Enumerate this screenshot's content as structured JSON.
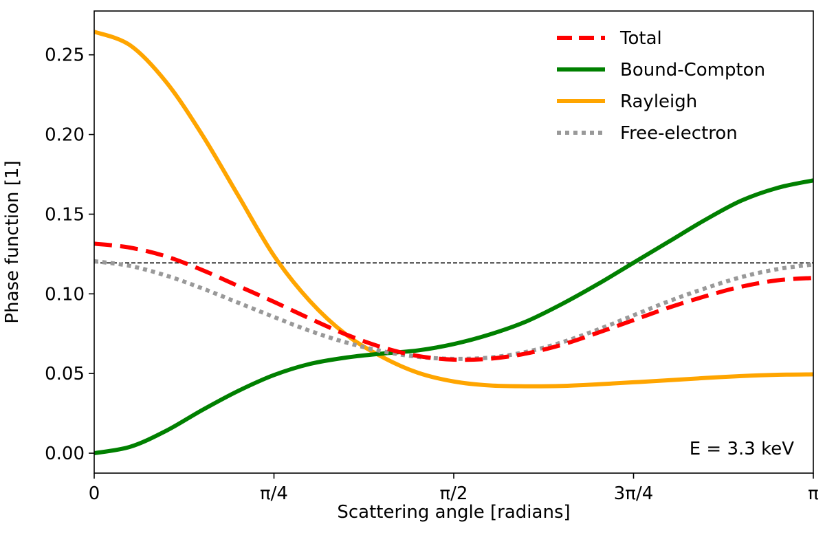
{
  "chart_data": {
    "type": "line",
    "xlabel": "Scattering angle [radians]",
    "ylabel": "Phase function [1]",
    "xlim": [
      0,
      3.14159
    ],
    "ylim": [
      -0.0125,
      0.2775
    ],
    "x_ticks": [
      {
        "value": 0,
        "label": "0"
      },
      {
        "value": 0.7854,
        "label": "π/4"
      },
      {
        "value": 1.5708,
        "label": "π/2"
      },
      {
        "value": 2.3562,
        "label": "3π/4"
      },
      {
        "value": 3.14159,
        "label": "π"
      }
    ],
    "y_ticks": [
      {
        "value": 0.0,
        "label": "0.00"
      },
      {
        "value": 0.05,
        "label": "0.05"
      },
      {
        "value": 0.1,
        "label": "0.10"
      },
      {
        "value": 0.15,
        "label": "0.15"
      },
      {
        "value": 0.2,
        "label": "0.20"
      },
      {
        "value": 0.25,
        "label": "0.25"
      }
    ],
    "grid": false,
    "legend_position": "top-right",
    "annotation": "E = 3.3 keV",
    "reference_line": {
      "y": 0.1194,
      "style": "dashed",
      "color": "#000000"
    },
    "series": [
      {
        "name": "Total",
        "color": "#ff0000",
        "style": "dashed",
        "x": [
          0,
          0.157,
          0.314,
          0.471,
          0.628,
          0.785,
          0.942,
          1.1,
          1.257,
          1.414,
          1.571,
          1.728,
          1.885,
          2.042,
          2.199,
          2.356,
          2.513,
          2.67,
          2.827,
          2.985,
          3.142
        ],
        "y": [
          0.1315,
          0.129,
          0.1235,
          0.115,
          0.105,
          0.095,
          0.0845,
          0.0745,
          0.0665,
          0.061,
          0.0587,
          0.0593,
          0.0625,
          0.068,
          0.0755,
          0.0835,
          0.0915,
          0.0985,
          0.1045,
          0.1085,
          0.11
        ]
      },
      {
        "name": "Bound-Compton",
        "color": "#008000",
        "style": "solid",
        "x": [
          0,
          0.157,
          0.314,
          0.471,
          0.628,
          0.785,
          0.942,
          1.1,
          1.257,
          1.414,
          1.571,
          1.728,
          1.885,
          2.042,
          2.199,
          2.356,
          2.513,
          2.67,
          2.827,
          2.985,
          3.142
        ],
        "y": [
          0.0,
          0.004,
          0.014,
          0.027,
          0.039,
          0.049,
          0.056,
          0.06,
          0.0625,
          0.0645,
          0.0685,
          0.0745,
          0.0825,
          0.0935,
          0.106,
          0.1195,
          0.133,
          0.1465,
          0.1585,
          0.1665,
          0.1712
        ]
      },
      {
        "name": "Rayleigh",
        "color": "#ffa500",
        "style": "solid",
        "x": [
          0,
          0.157,
          0.314,
          0.471,
          0.628,
          0.785,
          0.942,
          1.1,
          1.257,
          1.414,
          1.571,
          1.728,
          1.885,
          2.042,
          2.199,
          2.356,
          2.513,
          2.67,
          2.827,
          2.985,
          3.142
        ],
        "y": [
          0.2645,
          0.256,
          0.233,
          0.2,
          0.162,
          0.124,
          0.0955,
          0.0745,
          0.0605,
          0.0505,
          0.045,
          0.0425,
          0.042,
          0.0422,
          0.0432,
          0.0445,
          0.0458,
          0.0472,
          0.0484,
          0.0492,
          0.0495
        ]
      },
      {
        "name": "Free-electron",
        "color": "#999999",
        "style": "dotted",
        "x": [
          0,
          0.157,
          0.314,
          0.471,
          0.628,
          0.785,
          0.942,
          1.1,
          1.257,
          1.414,
          1.571,
          1.728,
          1.885,
          2.042,
          2.199,
          2.356,
          2.513,
          2.67,
          2.827,
          2.985,
          3.142
        ],
        "y": [
          0.1205,
          0.1175,
          0.1115,
          0.1035,
          0.0945,
          0.0855,
          0.0768,
          0.0695,
          0.064,
          0.0605,
          0.0592,
          0.06,
          0.0635,
          0.0695,
          0.0775,
          0.0865,
          0.0955,
          0.1035,
          0.1105,
          0.1155,
          0.1185
        ]
      }
    ]
  }
}
